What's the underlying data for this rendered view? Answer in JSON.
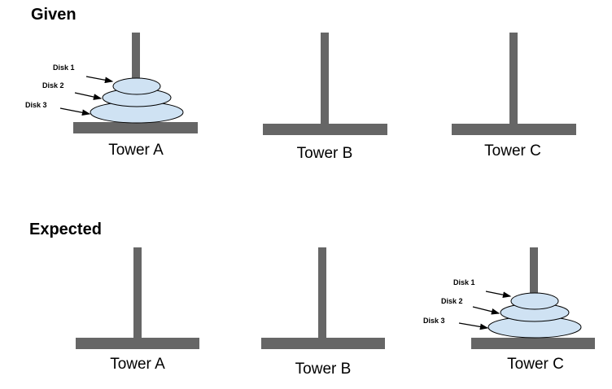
{
  "given": {
    "title": "Given",
    "towers": [
      {
        "label": "Tower A",
        "disks": [
          "Disk 1",
          "Disk 2",
          "Disk 3"
        ]
      },
      {
        "label": "Tower B",
        "disks": []
      },
      {
        "label": "Tower C",
        "disks": []
      }
    ]
  },
  "expected": {
    "title": "Expected",
    "towers": [
      {
        "label": "Tower A",
        "disks": []
      },
      {
        "label": "Tower B",
        "disks": []
      },
      {
        "label": "Tower C",
        "disks": [
          "Disk 1",
          "Disk 2",
          "Disk 3"
        ]
      }
    ]
  },
  "colors": {
    "pole": "#666666",
    "disk_fill": "#cfe2f3",
    "disk_outline": "#000000"
  }
}
